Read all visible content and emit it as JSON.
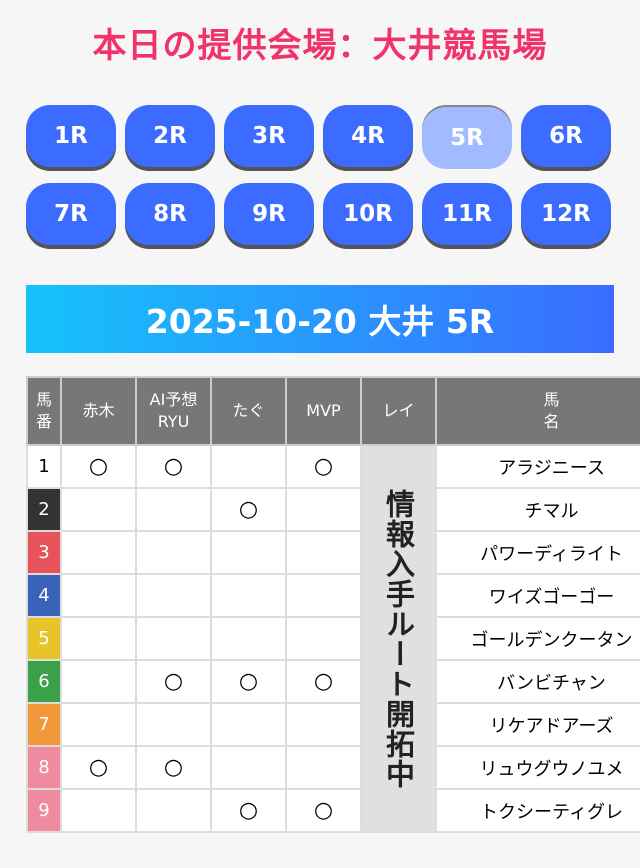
{
  "title": "本日の提供会場：大井競馬場",
  "races": [
    {
      "label": "1R"
    },
    {
      "label": "2R"
    },
    {
      "label": "3R"
    },
    {
      "label": "4R"
    },
    {
      "label": "5R",
      "active": true
    },
    {
      "label": "6R"
    },
    {
      "label": "7R"
    },
    {
      "label": "8R"
    },
    {
      "label": "9R"
    },
    {
      "label": "10R"
    },
    {
      "label": "11R"
    },
    {
      "label": "12R"
    }
  ],
  "banner": "2025-10-20 大井 5R",
  "table": {
    "headers": [
      "馬番",
      "赤木",
      "AI予想RYU",
      "たぐ",
      "MVP",
      "レイ",
      "馬名"
    ],
    "header_lines": {
      "num": [
        "馬",
        "番"
      ],
      "ai": [
        "AI予想",
        "RYU"
      ],
      "name": [
        "馬",
        "名"
      ]
    },
    "rei_note": "情報入手ルート開拓中",
    "mark": "○",
    "rows": [
      {
        "num": "1",
        "color": "#ffffff",
        "text": "#000000",
        "akagi": "○",
        "ai": "○",
        "tagu": "",
        "mvp": "○",
        "name": "アラジニース"
      },
      {
        "num": "2",
        "color": "#333333",
        "text": "#ffffff",
        "akagi": "",
        "ai": "",
        "tagu": "○",
        "mvp": "",
        "name": "チマル"
      },
      {
        "num": "3",
        "color": "#e8525a",
        "text": "#ffffff",
        "akagi": "",
        "ai": "",
        "tagu": "",
        "mvp": "",
        "name": "パワーディライト"
      },
      {
        "num": "4",
        "color": "#3a62b8",
        "text": "#ffffff",
        "akagi": "",
        "ai": "",
        "tagu": "",
        "mvp": "",
        "name": "ワイズゴーゴー"
      },
      {
        "num": "5",
        "color": "#e8c42a",
        "text": "#ffffff",
        "akagi": "",
        "ai": "",
        "tagu": "",
        "mvp": "",
        "name": "ゴールデンクータン"
      },
      {
        "num": "6",
        "color": "#3aa04a",
        "text": "#ffffff",
        "akagi": "",
        "ai": "○",
        "tagu": "○",
        "mvp": "○",
        "name": "バンビチャン"
      },
      {
        "num": "7",
        "color": "#f0983a",
        "text": "#ffffff",
        "akagi": "",
        "ai": "",
        "tagu": "",
        "mvp": "",
        "name": "リケアドアーズ"
      },
      {
        "num": "8",
        "color": "#f08aa0",
        "text": "#ffffff",
        "akagi": "○",
        "ai": "○",
        "tagu": "",
        "mvp": "",
        "name": "リュウグウノユメ"
      },
      {
        "num": "9",
        "color": "#f08aa0",
        "text": "#ffffff",
        "akagi": "",
        "ai": "",
        "tagu": "○",
        "mvp": "○",
        "name": "トクシーティグレ"
      }
    ]
  }
}
